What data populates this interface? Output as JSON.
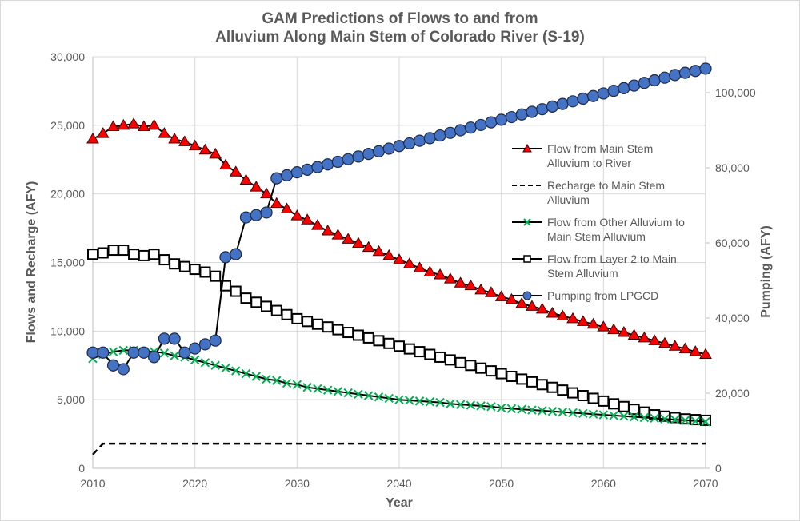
{
  "chart_data": {
    "type": "line",
    "title": "GAM Predictions of Flows to and from",
    "title_line2": "Alluvium Along Main Stem of Colorado River (S-19)",
    "xlabel": "Year",
    "ylabel": "Flows and Recharge (AFY)",
    "y2label": "Pumping (AFY)",
    "xlim": [
      2010,
      2070
    ],
    "ylim": [
      0,
      30000
    ],
    "y2lim": [
      0,
      110000
    ],
    "xticks": [
      "2010",
      "2020",
      "2030",
      "2040",
      "2050",
      "2060",
      "2070"
    ],
    "yticks": [
      "0",
      "5,000",
      "10,000",
      "15,000",
      "20,000",
      "25,000",
      "30,000"
    ],
    "y2ticks": [
      "0",
      "20,000",
      "40,000",
      "60,000",
      "80,000",
      "100,000"
    ],
    "grid": true,
    "legend_position": "right-center",
    "x": [
      2010,
      2011,
      2012,
      2013,
      2014,
      2015,
      2016,
      2017,
      2018,
      2019,
      2020,
      2021,
      2022,
      2023,
      2024,
      2025,
      2026,
      2027,
      2028,
      2029,
      2030,
      2031,
      2032,
      2033,
      2034,
      2035,
      2036,
      2037,
      2038,
      2039,
      2040,
      2041,
      2042,
      2043,
      2044,
      2045,
      2046,
      2047,
      2048,
      2049,
      2050,
      2051,
      2052,
      2053,
      2054,
      2055,
      2056,
      2057,
      2058,
      2059,
      2060,
      2061,
      2062,
      2063,
      2064,
      2065,
      2066,
      2067,
      2068,
      2069,
      2070
    ],
    "series": [
      {
        "name": "Flow from Main Stem Alluvium to River",
        "legend_lines": [
          "Flow from Main Stem",
          "Alluvium to River"
        ],
        "axis": "left",
        "marker": "triangle",
        "color": "#ff0000",
        "values": [
          24000,
          24400,
          24900,
          25000,
          25100,
          24900,
          25000,
          24400,
          24000,
          23800,
          23500,
          23200,
          22900,
          22100,
          21600,
          21000,
          20500,
          20000,
          19300,
          18900,
          18400,
          18100,
          17700,
          17300,
          17000,
          16700,
          16400,
          16100,
          15800,
          15500,
          15200,
          14900,
          14600,
          14300,
          14100,
          13800,
          13500,
          13300,
          13000,
          12800,
          12500,
          12300,
          12000,
          11800,
          11600,
          11300,
          11100,
          10900,
          10700,
          10500,
          10300,
          10100,
          9900,
          9700,
          9500,
          9300,
          9100,
          8900,
          8700,
          8500,
          8300
        ]
      },
      {
        "name": "Recharge to Main Stem Alluvium",
        "legend_lines": [
          "Recharge to Main Stem",
          "Alluvium"
        ],
        "axis": "left",
        "marker": "none",
        "dashed": true,
        "color": "#000000",
        "values": [
          1000,
          1800,
          1800,
          1800,
          1800,
          1800,
          1800,
          1800,
          1800,
          1800,
          1800,
          1800,
          1800,
          1800,
          1800,
          1800,
          1800,
          1800,
          1800,
          1800,
          1800,
          1800,
          1800,
          1800,
          1800,
          1800,
          1800,
          1800,
          1800,
          1800,
          1800,
          1800,
          1800,
          1800,
          1800,
          1800,
          1800,
          1800,
          1800,
          1800,
          1800,
          1800,
          1800,
          1800,
          1800,
          1800,
          1800,
          1800,
          1800,
          1800,
          1800,
          1800,
          1800,
          1800,
          1800,
          1800,
          1800,
          1800,
          1800,
          1800,
          1800
        ]
      },
      {
        "name": "Flow from Other Alluvium to Main Stem Alluvium",
        "legend_lines": [
          "Flow from Other Alluvium to",
          "Main Stem Alluvium"
        ],
        "axis": "left",
        "marker": "x",
        "color": "#00b050",
        "values": [
          8000,
          8300,
          8500,
          8600,
          8600,
          8500,
          8500,
          8400,
          8200,
          8100,
          7900,
          7700,
          7500,
          7300,
          7100,
          6900,
          6700,
          6500,
          6400,
          6200,
          6100,
          5900,
          5800,
          5700,
          5600,
          5500,
          5400,
          5300,
          5200,
          5100,
          5000,
          4950,
          4900,
          4850,
          4800,
          4700,
          4650,
          4600,
          4550,
          4500,
          4400,
          4350,
          4300,
          4250,
          4200,
          4150,
          4100,
          4050,
          4000,
          3950,
          3900,
          3850,
          3800,
          3750,
          3700,
          3650,
          3600,
          3550,
          3500,
          3450,
          3400
        ]
      },
      {
        "name": "Flow from Layer 2 to Main Stem Alluvium",
        "legend_lines": [
          "Flow from Layer 2 to Main",
          "Stem Alluvium"
        ],
        "axis": "left",
        "marker": "square",
        "color": "#000000",
        "values": [
          15600,
          15700,
          15900,
          15900,
          15600,
          15500,
          15600,
          15200,
          14900,
          14700,
          14500,
          14300,
          14000,
          13300,
          12900,
          12400,
          12100,
          11800,
          11500,
          11200,
          10900,
          10700,
          10500,
          10300,
          10100,
          9900,
          9700,
          9500,
          9300,
          9100,
          8900,
          8700,
          8500,
          8300,
          8100,
          7900,
          7700,
          7500,
          7300,
          7100,
          6900,
          6700,
          6500,
          6300,
          6100,
          5900,
          5700,
          5500,
          5300,
          5100,
          4900,
          4700,
          4500,
          4300,
          4100,
          3900,
          3800,
          3700,
          3600,
          3550,
          3500
        ]
      },
      {
        "name": "Pumping from LPGCD",
        "legend_lines": [
          "Pumping from LPGCD"
        ],
        "axis": "right",
        "marker": "circle",
        "color": "#4472c4",
        "values": [
          30800,
          30800,
          27400,
          26400,
          30800,
          30800,
          29600,
          34500,
          34500,
          30800,
          31900,
          33000,
          34000,
          56200,
          57000,
          66800,
          67400,
          68100,
          77200,
          78000,
          78800,
          79500,
          80200,
          80900,
          81600,
          82300,
          83000,
          83700,
          84400,
          85100,
          85800,
          86500,
          87200,
          87900,
          88600,
          89300,
          90000,
          90700,
          91400,
          92100,
          92800,
          93500,
          94200,
          94900,
          95600,
          96300,
          97000,
          97700,
          98400,
          99100,
          99800,
          100500,
          101200,
          101900,
          102600,
          103300,
          104000,
          104700,
          105300,
          105800,
          106400
        ]
      }
    ]
  }
}
